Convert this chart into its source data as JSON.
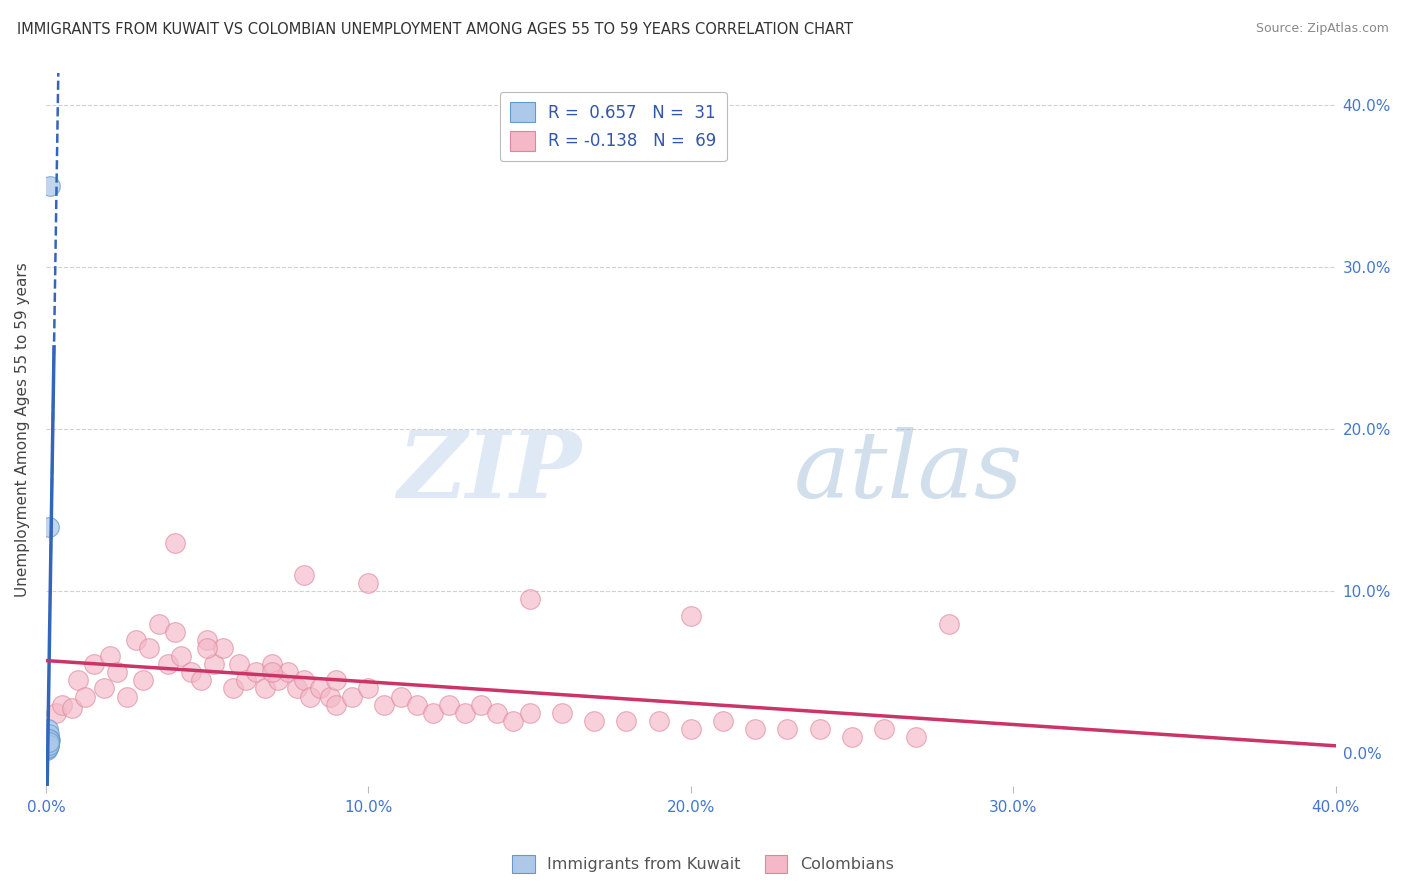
{
  "title": "IMMIGRANTS FROM KUWAIT VS COLOMBIAN UNEMPLOYMENT AMONG AGES 55 TO 59 YEARS CORRELATION CHART",
  "source": "Source: ZipAtlas.com",
  "ylabel": "Unemployment Among Ages 55 to 59 years",
  "blue_label": "Immigrants from Kuwait",
  "pink_label": "Colombians",
  "blue_R": 0.657,
  "blue_N": 31,
  "pink_R": -0.138,
  "pink_N": 69,
  "xmin": 0.0,
  "xmax": 40.0,
  "ymin": -2.0,
  "ymax": 42.0,
  "right_ytick_vals": [
    0.0,
    10.0,
    20.0,
    30.0,
    40.0
  ],
  "right_ytick_labels": [
    "0.0%",
    "10.0%",
    "20.0%",
    "30.0%",
    "40.0%"
  ],
  "xtick_vals": [
    0.0,
    10.0,
    20.0,
    30.0,
    40.0
  ],
  "xtick_labels": [
    "0.0%",
    "10.0%",
    "20.0%",
    "30.0%",
    "40.0%"
  ],
  "watermark_zip": "ZIP",
  "watermark_atlas": "atlas",
  "blue_color": "#adc8e8",
  "blue_edge": "#6699cc",
  "blue_line_color": "#3366bb",
  "pink_color": "#f4b8c8",
  "pink_edge": "#dd8899",
  "pink_line_color": "#cc3366",
  "background_color": "#ffffff",
  "grid_color": "#cccccc",
  "title_color": "#333333",
  "axis_label_color": "#4477cc",
  "legend_text_color": "#3355aa",
  "blue_x": [
    0.05,
    0.06,
    0.04,
    0.08,
    0.12,
    0.07,
    0.09,
    0.1,
    0.05,
    0.06,
    0.08,
    0.04,
    0.05,
    0.06,
    0.07,
    0.03,
    0.1,
    0.11,
    0.05,
    0.04,
    0.06,
    0.07,
    0.08,
    0.09,
    0.1,
    0.08,
    0.06,
    0.07,
    0.05,
    0.08,
    0.09
  ],
  "blue_y": [
    0.5,
    1.0,
    0.3,
    0.8,
    35.0,
    1.5,
    0.7,
    0.9,
    0.4,
    0.6,
    14.0,
    0.2,
    0.5,
    0.4,
    0.6,
    0.3,
    1.2,
    0.8,
    0.4,
    0.3,
    0.5,
    0.6,
    0.7,
    0.8,
    0.9,
    0.5,
    0.4,
    0.6,
    0.3,
    0.5,
    0.7
  ],
  "pink_x": [
    0.3,
    0.5,
    0.8,
    1.0,
    1.2,
    1.5,
    1.8,
    2.0,
    2.2,
    2.5,
    2.8,
    3.0,
    3.2,
    3.5,
    3.8,
    4.0,
    4.2,
    4.5,
    4.8,
    5.0,
    5.2,
    5.5,
    5.8,
    6.0,
    6.2,
    6.5,
    6.8,
    7.0,
    7.2,
    7.5,
    7.8,
    8.0,
    8.2,
    8.5,
    8.8,
    9.0,
    9.5,
    10.0,
    10.5,
    11.0,
    11.5,
    12.0,
    12.5,
    13.0,
    13.5,
    14.0,
    14.5,
    15.0,
    16.0,
    17.0,
    18.0,
    19.0,
    20.0,
    21.0,
    22.0,
    23.0,
    24.0,
    25.0,
    26.0,
    27.0,
    4.0,
    8.0,
    10.0,
    15.0,
    20.0,
    28.0,
    5.0,
    7.0,
    9.0
  ],
  "pink_y": [
    2.5,
    3.0,
    2.8,
    4.5,
    3.5,
    5.5,
    4.0,
    6.0,
    5.0,
    3.5,
    7.0,
    4.5,
    6.5,
    8.0,
    5.5,
    7.5,
    6.0,
    5.0,
    4.5,
    7.0,
    5.5,
    6.5,
    4.0,
    5.5,
    4.5,
    5.0,
    4.0,
    5.5,
    4.5,
    5.0,
    4.0,
    4.5,
    3.5,
    4.0,
    3.5,
    3.0,
    3.5,
    4.0,
    3.0,
    3.5,
    3.0,
    2.5,
    3.0,
    2.5,
    3.0,
    2.5,
    2.0,
    2.5,
    2.5,
    2.0,
    2.0,
    2.0,
    1.5,
    2.0,
    1.5,
    1.5,
    1.5,
    1.0,
    1.5,
    1.0,
    13.0,
    11.0,
    10.5,
    9.5,
    8.5,
    8.0,
    6.5,
    5.0,
    4.5
  ]
}
